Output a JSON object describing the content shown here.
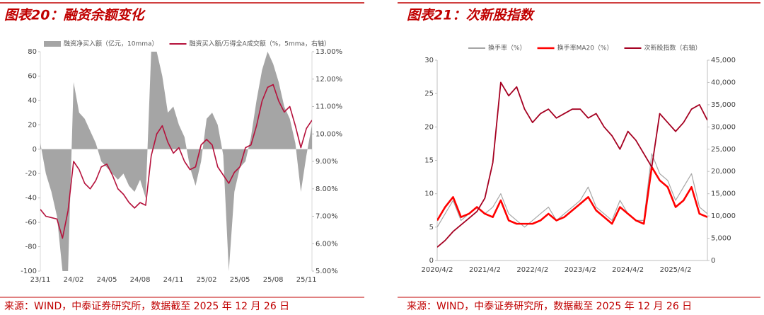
{
  "chart_data": [
    {
      "type": "combo",
      "title": "图表20：融资余额变化",
      "note": "来源：WIND，中泰证券研究所，数据截至 2025 年 12 月 26 日",
      "categories": [
        "23/11",
        null,
        null,
        null,
        null,
        null,
        "24/02",
        null,
        null,
        null,
        null,
        null,
        "24/05",
        null,
        null,
        null,
        null,
        null,
        "24/08",
        null,
        null,
        null,
        null,
        null,
        "24/11",
        null,
        null,
        null,
        null,
        null,
        "25/02",
        null,
        null,
        null,
        null,
        null,
        "25/05",
        null,
        null,
        null,
        null,
        null,
        "25/08",
        null,
        null,
        null,
        null,
        null,
        "25/11",
        null
      ],
      "series": [
        {
          "name": "融资净买入额（亿元，10mma）",
          "type": "area",
          "color": "#a5a5a5",
          "values": [
            5,
            -20,
            -35,
            -55,
            -100,
            -100,
            55,
            30,
            25,
            15,
            5,
            -10,
            -15,
            -20,
            -25,
            -20,
            -30,
            -35,
            -25,
            -40,
            80,
            80,
            60,
            30,
            35,
            20,
            10,
            -15,
            -30,
            -10,
            25,
            30,
            20,
            -5,
            -100,
            -35,
            -15,
            -10,
            10,
            40,
            65,
            80,
            70,
            55,
            35,
            25,
            5,
            -35,
            -5,
            20
          ]
        },
        {
          "name": "融资买入额/万得全A成交额（%，5mma，右轴）",
          "type": "line",
          "axis": "y2",
          "color": "#b5123c",
          "values": [
            7.25,
            7.0,
            6.95,
            6.9,
            6.2,
            7.2,
            9.0,
            8.7,
            8.2,
            8.0,
            8.3,
            8.8,
            8.9,
            8.5,
            8.0,
            7.8,
            7.5,
            7.3,
            7.5,
            7.4,
            9.2,
            10.0,
            10.3,
            9.7,
            9.3,
            9.5,
            9.0,
            8.7,
            8.8,
            9.6,
            9.8,
            9.6,
            8.8,
            8.5,
            8.2,
            8.6,
            8.8,
            9.5,
            9.6,
            10.3,
            11.2,
            11.7,
            11.8,
            11.2,
            10.8,
            11.0,
            10.3,
            9.5,
            10.2,
            10.5
          ]
        }
      ],
      "ylim": [
        -100,
        80
      ],
      "yticks": [
        -100,
        -80,
        -60,
        -40,
        -20,
        0,
        20,
        40,
        60,
        80
      ],
      "y2lim": [
        5,
        13
      ],
      "y2ticks": [
        {
          "value": 5,
          "label": "5.00%"
        },
        {
          "value": 6,
          "label": "6.00%"
        },
        {
          "value": 7,
          "label": "7.00%"
        },
        {
          "value": 8,
          "label": "8.00%"
        },
        {
          "value": 9,
          "label": "9.00%"
        },
        {
          "value": 10,
          "label": "10.00%"
        },
        {
          "value": 11,
          "label": "11.00%"
        },
        {
          "value": 12,
          "label": "12.00%"
        },
        {
          "value": 13,
          "label": "13.00%"
        }
      ]
    },
    {
      "type": "line",
      "title": "图表21：次新股指数",
      "note": "来源：WIND，中泰证券研究所，数据截至 2025 年 12 月 26 日",
      "categories": [
        "2020/4/2",
        null,
        null,
        null,
        null,
        null,
        "2021/4/2",
        null,
        null,
        null,
        null,
        null,
        "2022/4/2",
        null,
        null,
        null,
        null,
        null,
        "2023/4/2",
        null,
        null,
        null,
        null,
        null,
        "2024/4/2",
        null,
        null,
        null,
        null,
        null,
        "2025/4/2",
        null,
        null,
        null,
        null
      ],
      "series": [
        {
          "name": "换手率（%）",
          "type": "line",
          "color": "#a6a6a6",
          "values": [
            5,
            7,
            9,
            6,
            7,
            8,
            7,
            8,
            10,
            7,
            6,
            5,
            6,
            7,
            8,
            6,
            7,
            8,
            9,
            11,
            8,
            7,
            6,
            9,
            7,
            6,
            6,
            16,
            13,
            12,
            9,
            11,
            13,
            8,
            7
          ]
        },
        {
          "name": "换手率MA20（%）",
          "type": "line",
          "color": "#ff0000",
          "values": [
            6,
            8,
            9.5,
            6.5,
            7,
            8,
            7,
            6.5,
            9,
            6,
            5.5,
            5.5,
            5.5,
            6,
            7,
            6,
            6.5,
            7.5,
            8.5,
            9.5,
            7.5,
            6.5,
            5.5,
            8,
            7,
            6,
            5.5,
            14,
            12,
            11,
            8,
            9,
            11,
            7,
            6.5
          ]
        },
        {
          "name": "次新股指数（右轴）",
          "type": "line",
          "axis": "y2",
          "color": "#a50021",
          "values": [
            3000,
            4500,
            6500,
            8000,
            9500,
            11000,
            14000,
            22000,
            40000,
            37000,
            39000,
            34000,
            31000,
            33000,
            34000,
            32000,
            33000,
            34000,
            34000,
            32000,
            33000,
            30000,
            28000,
            25000,
            29000,
            27000,
            24000,
            21000,
            33000,
            31000,
            29000,
            31000,
            34000,
            35000,
            31500
          ]
        }
      ],
      "ylim": [
        0,
        30
      ],
      "yticks": [
        0,
        5,
        10,
        15,
        20,
        25,
        30
      ],
      "y2lim": [
        0,
        45000
      ],
      "y2ticks": [
        0,
        {
          "value": 5000,
          "label": "5,000"
        },
        {
          "value": 10000,
          "label": "10,000"
        },
        {
          "value": 15000,
          "label": "15,000"
        },
        {
          "value": 20000,
          "label": "20,000"
        },
        {
          "value": 25000,
          "label": "25,000"
        },
        {
          "value": 30000,
          "label": "30,000"
        },
        {
          "value": 35000,
          "label": "35,000"
        },
        {
          "value": 40000,
          "label": "40,000"
        },
        {
          "value": 45000,
          "label": "45,000"
        }
      ]
    }
  ]
}
